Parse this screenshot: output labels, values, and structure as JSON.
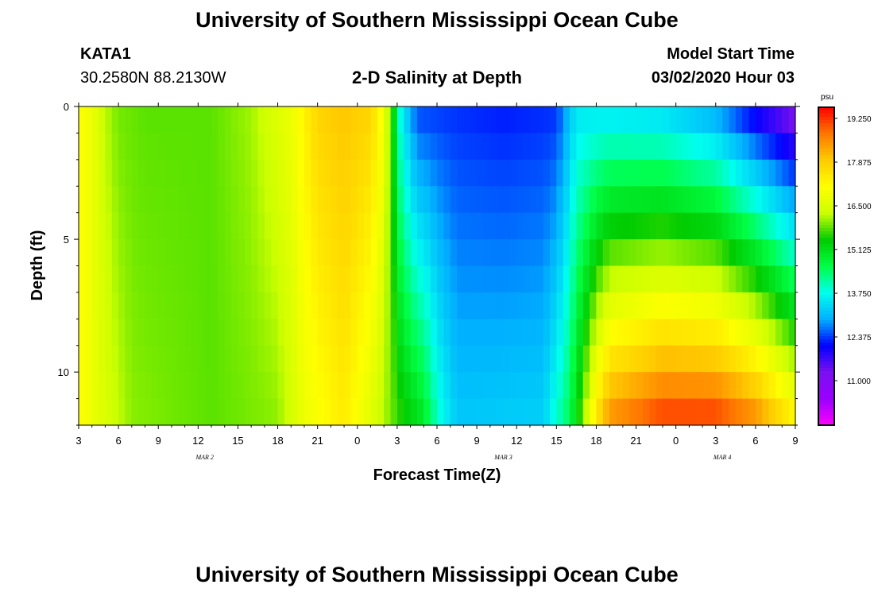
{
  "header": {
    "title_top": "University of Southern Mississippi Ocean Cube",
    "title_bottom": "University of Southern Mississippi Ocean Cube",
    "station_id": "KATA1",
    "station_coords": "30.2580N 88.2130W",
    "plot_title": "2-D Salinity at Depth",
    "model_label": "Model Start Time",
    "model_time": "03/02/2020 Hour 03"
  },
  "chart_data": {
    "type": "heatmap",
    "title": "2-D Salinity at Depth",
    "xlabel": "Forecast Time(Z)",
    "ylabel": "Depth (ft)",
    "x_tick_labels": [
      "3",
      "6",
      "9",
      "12",
      "15",
      "18",
      "21",
      "0",
      "3",
      "6",
      "9",
      "12",
      "15",
      "18",
      "21",
      "0",
      "3",
      "6",
      "9"
    ],
    "x_range_hours": [
      0,
      54
    ],
    "date_labels": [
      {
        "label": "MAR 2",
        "hour": 9.5
      },
      {
        "label": "MAR 3",
        "hour": 32
      },
      {
        "label": "MAR 4",
        "hour": 48.5
      }
    ],
    "y_tick_labels": [
      {
        "label": "0",
        "depth": 0
      },
      {
        "label": "5",
        "depth": 5
      },
      {
        "label": "10",
        "depth": 10
      }
    ],
    "y_range_ft": [
      0,
      12
    ],
    "colorbar": {
      "unit": "psu",
      "min": 9.6,
      "max": 19.6,
      "tick_labels": [
        "19.250",
        "17.875",
        "16.500",
        "15.125",
        "13.750",
        "12.375",
        "11.000"
      ],
      "tick_values": [
        19.25,
        17.875,
        16.5,
        15.125,
        13.75,
        12.375,
        11.0
      ],
      "colors": [
        "#ff00ff",
        "#9900ff",
        "#7a10f0",
        "#0000ff",
        "#00b0ff",
        "#00ffee",
        "#00ff44",
        "#00cc00",
        "#ccff00",
        "#ffff00",
        "#ffcc00",
        "#ff7700",
        "#ff0000"
      ]
    },
    "surface_profile": [
      {
        "hour": 0,
        "value": 17.1
      },
      {
        "hour": 1,
        "value": 16.8
      },
      {
        "hour": 2,
        "value": 16.2
      },
      {
        "hour": 3,
        "value": 15.9
      },
      {
        "hour": 5,
        "value": 15.8
      },
      {
        "hour": 10,
        "value": 15.8
      },
      {
        "hour": 13,
        "value": 16.1
      },
      {
        "hour": 16,
        "value": 16.8
      },
      {
        "hour": 18,
        "value": 17.8
      },
      {
        "hour": 20,
        "value": 18.0
      },
      {
        "hour": 22,
        "value": 17.8
      },
      {
        "hour": 23,
        "value": 16.9
      },
      {
        "hour": 23.7,
        "value": 15.3
      },
      {
        "hour": 24.3,
        "value": 13.6
      },
      {
        "hour": 25.5,
        "value": 12.4
      },
      {
        "hour": 32,
        "value": 12.2
      },
      {
        "hour": 36,
        "value": 12.3
      },
      {
        "hour": 37.5,
        "value": 13.5
      },
      {
        "hour": 44,
        "value": 13.3
      },
      {
        "hour": 48,
        "value": 12.8
      },
      {
        "hour": 51,
        "value": 11.8
      },
      {
        "hour": 54,
        "value": 11.0
      }
    ],
    "bottom_profile": [
      {
        "hour": 0,
        "value": 17.1
      },
      {
        "hour": 2,
        "value": 16.5
      },
      {
        "hour": 4,
        "value": 16.0
      },
      {
        "hour": 10,
        "value": 15.8
      },
      {
        "hour": 15,
        "value": 16.0
      },
      {
        "hour": 17,
        "value": 16.8
      },
      {
        "hour": 20,
        "value": 17.4
      },
      {
        "hour": 22,
        "value": 16.6
      },
      {
        "hour": 24,
        "value": 15.7
      },
      {
        "hour": 26,
        "value": 15.0
      },
      {
        "hour": 27,
        "value": 14.0
      },
      {
        "hour": 28.5,
        "value": 13.2
      },
      {
        "hour": 35,
        "value": 13.3
      },
      {
        "hour": 37,
        "value": 14.6
      },
      {
        "hour": 38,
        "value": 16.0
      },
      {
        "hour": 39,
        "value": 17.6
      },
      {
        "hour": 40,
        "value": 18.6
      },
      {
        "hour": 44,
        "value": 19.3
      },
      {
        "hour": 48,
        "value": 19.3
      },
      {
        "hour": 51,
        "value": 18.7
      },
      {
        "hour": 54,
        "value": 17.4
      }
    ]
  }
}
